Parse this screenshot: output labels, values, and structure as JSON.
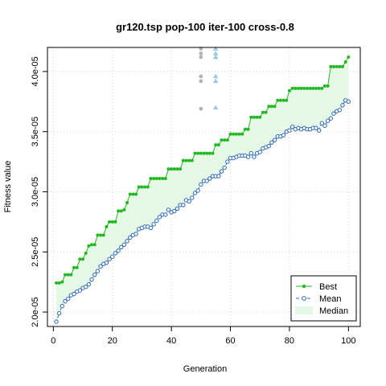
{
  "chart_data": {
    "type": "line",
    "title": "gr120.tsp pop-100 iter-100 cross-0.8",
    "xlabel": "Generation",
    "ylabel": "Fitness value",
    "xlim": [
      -2,
      104
    ],
    "ylim": [
      1.88e-05,
      4.2e-05
    ],
    "xticks": [
      0,
      20,
      40,
      60,
      80,
      100
    ],
    "xtick_labels": [
      "0",
      "20",
      "40",
      "60",
      "80",
      "100"
    ],
    "yticks": [
      2e-05,
      2.5e-05,
      3e-05,
      3.5e-05,
      4e-05
    ],
    "ytick_labels": [
      "2.0e-05",
      "2.5e-05",
      "3.0e-05",
      "3.5e-05",
      "4.0e-05"
    ],
    "grid": true,
    "legend_position": "bottom-right",
    "colors": {
      "best": "#22b822",
      "mean": "#2c68b8",
      "median_fill": "#e6f8e6",
      "outlier_grey": "#b4b4b4",
      "outlier_blue": "#96c8e0"
    },
    "series": [
      {
        "name": "Best",
        "key": "best"
      },
      {
        "name": "Mean",
        "key": "mean"
      },
      {
        "name": "Median",
        "key": "median"
      }
    ],
    "x": [
      1,
      2,
      3,
      4,
      5,
      6,
      7,
      8,
      9,
      10,
      11,
      12,
      13,
      14,
      15,
      16,
      17,
      18,
      19,
      20,
      21,
      22,
      23,
      24,
      25,
      26,
      27,
      28,
      29,
      30,
      31,
      32,
      33,
      34,
      35,
      36,
      37,
      38,
      39,
      40,
      41,
      42,
      43,
      44,
      45,
      46,
      47,
      48,
      49,
      50,
      51,
      52,
      53,
      54,
      55,
      56,
      57,
      58,
      59,
      60,
      61,
      62,
      63,
      64,
      65,
      66,
      67,
      68,
      69,
      70,
      71,
      72,
      73,
      74,
      75,
      76,
      77,
      78,
      79,
      80,
      81,
      82,
      83,
      84,
      85,
      86,
      87,
      88,
      89,
      90,
      91,
      92,
      93,
      94,
      95,
      96,
      97,
      98,
      99,
      100
    ],
    "best": [
      2.242e-05,
      2.242e-05,
      2.25e-05,
      2.31e-05,
      2.31e-05,
      2.31e-05,
      2.37e-05,
      2.37e-05,
      2.44e-05,
      2.44e-05,
      2.49e-05,
      2.55e-05,
      2.56e-05,
      2.56e-05,
      2.64e-05,
      2.64e-05,
      2.64e-05,
      2.71e-05,
      2.75e-05,
      2.75e-05,
      2.75e-05,
      2.84e-05,
      2.84e-05,
      2.85e-05,
      2.91e-05,
      2.98e-05,
      2.98e-05,
      2.98e-05,
      3.04e-05,
      3.04e-05,
      3.04e-05,
      3.04e-05,
      3.11e-05,
      3.11e-05,
      3.11e-05,
      3.11e-05,
      3.11e-05,
      3.11e-05,
      3.19e-05,
      3.19e-05,
      3.19e-05,
      3.19e-05,
      3.19e-05,
      3.26e-05,
      3.26e-05,
      3.26e-05,
      3.26e-05,
      3.32e-05,
      3.32e-05,
      3.32e-05,
      3.32e-05,
      3.32e-05,
      3.32e-05,
      3.32e-05,
      3.39e-05,
      3.39e-05,
      3.43e-05,
      3.43e-05,
      3.43e-05,
      3.48e-05,
      3.48e-05,
      3.48e-05,
      3.48e-05,
      3.48e-05,
      3.52e-05,
      3.52e-05,
      3.62e-05,
      3.62e-05,
      3.62e-05,
      3.62e-05,
      3.66e-05,
      3.66e-05,
      3.71e-05,
      3.71e-05,
      3.71e-05,
      3.76e-05,
      3.76e-05,
      3.76e-05,
      3.76e-05,
      3.84e-05,
      3.86e-05,
      3.86e-05,
      3.86e-05,
      3.86e-05,
      3.86e-05,
      3.86e-05,
      3.86e-05,
      3.86e-05,
      3.86e-05,
      3.86e-05,
      3.86e-05,
      3.88e-05,
      3.88e-05,
      4.04e-05,
      4.04e-05,
      4.04e-05,
      4.04e-05,
      4.04e-05,
      4.08e-05,
      4.12e-05
    ],
    "mean": [
      1.92e-05,
      1.99e-05,
      2.05e-05,
      2.09e-05,
      2.11e-05,
      2.14e-05,
      2.15e-05,
      2.17e-05,
      2.18e-05,
      2.2e-05,
      2.21e-05,
      2.23e-05,
      2.27e-05,
      2.31e-05,
      2.34e-05,
      2.38e-05,
      2.4e-05,
      2.41e-05,
      2.44e-05,
      2.46e-05,
      2.49e-05,
      2.51e-05,
      2.54e-05,
      2.56e-05,
      2.59e-05,
      2.62e-05,
      2.64e-05,
      2.65e-05,
      2.69e-05,
      2.7e-05,
      2.71e-05,
      2.71e-05,
      2.7e-05,
      2.73e-05,
      2.76e-05,
      2.79e-05,
      2.81e-05,
      2.81e-05,
      2.85e-05,
      2.83e-05,
      2.84e-05,
      2.86e-05,
      2.89e-05,
      2.89e-05,
      2.93e-05,
      2.92e-05,
      2.95e-05,
      2.99e-05,
      3.01e-05,
      3.06e-05,
      3.09e-05,
      3.09e-05,
      3.11e-05,
      3.13e-05,
      3.13e-05,
      3.13e-05,
      3.17e-05,
      3.2e-05,
      3.25e-05,
      3.28e-05,
      3.28e-05,
      3.29e-05,
      3.3e-05,
      3.3e-05,
      3.3e-05,
      3.29e-05,
      3.32e-05,
      3.29e-05,
      3.32e-05,
      3.33e-05,
      3.36e-05,
      3.37e-05,
      3.38e-05,
      3.41e-05,
      3.43e-05,
      3.46e-05,
      3.46e-05,
      3.47e-05,
      3.5e-05,
      3.51e-05,
      3.54e-05,
      3.52e-05,
      3.53e-05,
      3.52e-05,
      3.53e-05,
      3.52e-05,
      3.52e-05,
      3.53e-05,
      3.53e-05,
      3.51e-05,
      3.57e-05,
      3.55e-05,
      3.59e-05,
      3.61e-05,
      3.65e-05,
      3.67e-05,
      3.68e-05,
      3.72e-05,
      3.76e-05,
      3.75e-05
    ],
    "median": [
      2.242e-05,
      2.242e-05,
      2.25e-05,
      2.31e-05,
      2.31e-05,
      2.31e-05,
      2.37e-05,
      2.37e-05,
      2.44e-05,
      2.44e-05,
      2.49e-05,
      2.55e-05,
      2.56e-05,
      2.56e-05,
      2.64e-05,
      2.64e-05,
      2.64e-05,
      2.71e-05,
      2.75e-05,
      2.75e-05,
      2.75e-05,
      2.84e-05,
      2.84e-05,
      2.85e-05,
      2.91e-05,
      2.98e-05,
      2.98e-05,
      2.98e-05,
      3.04e-05,
      3.04e-05,
      3.04e-05,
      3.04e-05,
      3.11e-05,
      3.11e-05,
      3.11e-05,
      3.11e-05,
      3.11e-05,
      3.11e-05,
      3.19e-05,
      3.19e-05,
      3.19e-05,
      3.19e-05,
      3.19e-05,
      3.26e-05,
      3.26e-05,
      3.26e-05,
      3.26e-05,
      3.32e-05,
      3.32e-05,
      3.32e-05,
      3.32e-05,
      3.32e-05,
      3.32e-05,
      3.32e-05,
      3.39e-05,
      3.39e-05,
      3.43e-05,
      3.43e-05,
      3.43e-05,
      3.48e-05,
      3.48e-05,
      3.48e-05,
      3.48e-05,
      3.48e-05,
      3.52e-05,
      3.52e-05,
      3.62e-05,
      3.62e-05,
      3.62e-05,
      3.62e-05,
      3.66e-05,
      3.66e-05,
      3.71e-05,
      3.71e-05,
      3.71e-05,
      3.76e-05,
      3.76e-05,
      3.76e-05,
      3.76e-05,
      3.84e-05,
      3.86e-05,
      3.86e-05,
      3.86e-05,
      3.86e-05,
      3.86e-05,
      3.86e-05,
      3.86e-05,
      3.86e-05,
      3.86e-05,
      3.86e-05,
      3.86e-05,
      3.88e-05,
      3.88e-05,
      4.04e-05,
      4.04e-05,
      4.04e-05,
      4.04e-05,
      4.04e-05,
      4.08e-05,
      4.12e-05
    ],
    "outliers": [
      {
        "x": 50,
        "y": 4.19e-05,
        "color": "grey",
        "shape": "circle"
      },
      {
        "x": 50,
        "y": 4.15e-05,
        "color": "grey",
        "shape": "circle"
      },
      {
        "x": 50,
        "y": 4.12e-05,
        "color": "grey",
        "shape": "circle"
      },
      {
        "x": 50,
        "y": 3.96e-05,
        "color": "grey",
        "shape": "circle"
      },
      {
        "x": 50,
        "y": 3.92e-05,
        "color": "grey",
        "shape": "circle"
      },
      {
        "x": 50,
        "y": 3.69e-05,
        "color": "grey",
        "shape": "circle"
      },
      {
        "x": 55,
        "y": 4.19e-05,
        "color": "blue",
        "shape": "triangle"
      },
      {
        "x": 55,
        "y": 4.15e-05,
        "color": "blue",
        "shape": "triangle"
      },
      {
        "x": 55,
        "y": 4.12e-05,
        "color": "blue",
        "shape": "triangle"
      },
      {
        "x": 55,
        "y": 3.96e-05,
        "color": "blue",
        "shape": "triangle"
      },
      {
        "x": 55,
        "y": 3.92e-05,
        "color": "blue",
        "shape": "triangle"
      },
      {
        "x": 55,
        "y": 3.7e-05,
        "color": "blue",
        "shape": "triangle"
      }
    ]
  }
}
